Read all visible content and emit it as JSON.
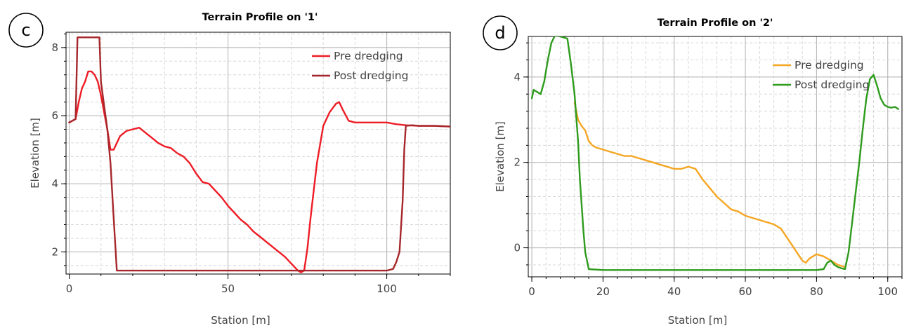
{
  "chart_data": [
    {
      "type": "line",
      "panel_label": "c",
      "title": "Terrain Profile on '1'",
      "xlabel": "Station [m]",
      "ylabel": "Elevation [m]",
      "xlim": [
        -1,
        120
      ],
      "ylim": [
        1.35,
        8.45
      ],
      "xticks": [
        0,
        50,
        100
      ],
      "yticks": [
        2,
        4,
        6,
        8
      ],
      "grid": true,
      "legend_position": "top-right",
      "series": [
        {
          "name": "Pre dredging",
          "color": "#ee1c25",
          "x": [
            0,
            1,
            2,
            3,
            4,
            5,
            6,
            7,
            8,
            9,
            10,
            11,
            12,
            13,
            14,
            16,
            18,
            20,
            22,
            24,
            26,
            28,
            30,
            32,
            34,
            36,
            38,
            40,
            42,
            44,
            46,
            48,
            50,
            52,
            54,
            56,
            58,
            60,
            62,
            64,
            66,
            68,
            70,
            72,
            73,
            74,
            75,
            76,
            78,
            80,
            82,
            84,
            85,
            86,
            88,
            90,
            92,
            95,
            100,
            103,
            106,
            110,
            115,
            120
          ],
          "y": [
            5.8,
            5.85,
            5.9,
            6.4,
            6.8,
            7.0,
            7.3,
            7.3,
            7.2,
            7.0,
            6.6,
            6.1,
            5.6,
            5.0,
            5.0,
            5.4,
            5.55,
            5.6,
            5.65,
            5.5,
            5.35,
            5.2,
            5.1,
            5.05,
            4.9,
            4.8,
            4.6,
            4.3,
            4.05,
            4.0,
            3.8,
            3.6,
            3.35,
            3.15,
            2.95,
            2.8,
            2.6,
            2.45,
            2.3,
            2.15,
            2.0,
            1.85,
            1.65,
            1.45,
            1.4,
            1.45,
            2.1,
            3.0,
            4.6,
            5.7,
            6.1,
            6.35,
            6.4,
            6.2,
            5.85,
            5.8,
            5.8,
            5.8,
            5.8,
            5.75,
            5.72,
            5.7,
            5.7,
            5.68
          ]
        },
        {
          "name": "Post dredging",
          "color": "#a6272b",
          "x": [
            0,
            1,
            2,
            2.6,
            3,
            5,
            8,
            9.5,
            10,
            11,
            12,
            13,
            14,
            15,
            16,
            20,
            40,
            60,
            72,
            75,
            80,
            90,
            100,
            102,
            103,
            104,
            105,
            105.5,
            106,
            108,
            110,
            115,
            120
          ],
          "y": [
            5.8,
            5.85,
            5.9,
            8.3,
            8.3,
            8.3,
            8.3,
            8.3,
            7.0,
            6.3,
            5.6,
            4.6,
            3.0,
            1.45,
            1.45,
            1.45,
            1.45,
            1.45,
            1.45,
            1.45,
            1.45,
            1.45,
            1.45,
            1.5,
            1.7,
            2.0,
            3.5,
            5.0,
            5.7,
            5.72,
            5.7,
            5.7,
            5.68
          ]
        }
      ]
    },
    {
      "type": "line",
      "panel_label": "d",
      "title": "Terrain Profile on '2'",
      "xlabel": "Station [m]",
      "ylabel": "Elevation [m]",
      "xlim": [
        -1,
        104
      ],
      "ylim": [
        -0.68,
        4.95
      ],
      "xticks": [
        0,
        20,
        40,
        60,
        80,
        100
      ],
      "yticks": [
        0,
        2,
        4
      ],
      "grid": true,
      "legend_position": "top-right",
      "series": [
        {
          "name": "Pre dredging",
          "color": "#f5a623",
          "x": [
            12,
            13,
            14,
            15,
            16,
            17,
            18,
            20,
            22,
            24,
            26,
            28,
            30,
            32,
            34,
            36,
            38,
            40,
            42,
            44,
            46,
            48,
            50,
            52,
            54,
            56,
            58,
            60,
            62,
            64,
            66,
            68,
            70,
            72,
            74,
            76,
            77,
            78,
            80,
            82,
            84,
            86,
            88
          ],
          "y": [
            3.4,
            3.0,
            2.85,
            2.75,
            2.5,
            2.4,
            2.35,
            2.3,
            2.25,
            2.2,
            2.15,
            2.15,
            2.1,
            2.05,
            2.0,
            1.95,
            1.9,
            1.85,
            1.85,
            1.9,
            1.85,
            1.6,
            1.4,
            1.2,
            1.05,
            0.9,
            0.85,
            0.75,
            0.7,
            0.65,
            0.6,
            0.55,
            0.45,
            0.2,
            -0.05,
            -0.3,
            -0.35,
            -0.25,
            -0.15,
            -0.2,
            -0.3,
            -0.4,
            -0.45
          ]
        },
        {
          "name": "Post dredging",
          "color": "#2e9b1d",
          "x": [
            0,
            0.5,
            1.5,
            2.5,
            3.5,
            4.5,
            5.5,
            6.5,
            8,
            10,
            11,
            12,
            13,
            13.5,
            14,
            14.5,
            15,
            16,
            20,
            40,
            60,
            80,
            82,
            83,
            84,
            85,
            86,
            87,
            88,
            89,
            90,
            91,
            92,
            93,
            94,
            95,
            96,
            97,
            98,
            99,
            100,
            101,
            102,
            103
          ],
          "y": [
            3.5,
            3.7,
            3.65,
            3.6,
            3.9,
            4.4,
            4.8,
            4.97,
            4.95,
            4.9,
            4.3,
            3.6,
            2.5,
            1.6,
            1.0,
            0.4,
            -0.1,
            -0.5,
            -0.52,
            -0.52,
            -0.52,
            -0.52,
            -0.5,
            -0.35,
            -0.3,
            -0.4,
            -0.45,
            -0.48,
            -0.5,
            -0.1,
            0.6,
            1.3,
            2.0,
            2.8,
            3.5,
            3.95,
            4.05,
            3.8,
            3.5,
            3.35,
            3.3,
            3.28,
            3.3,
            3.25
          ]
        }
      ]
    }
  ]
}
